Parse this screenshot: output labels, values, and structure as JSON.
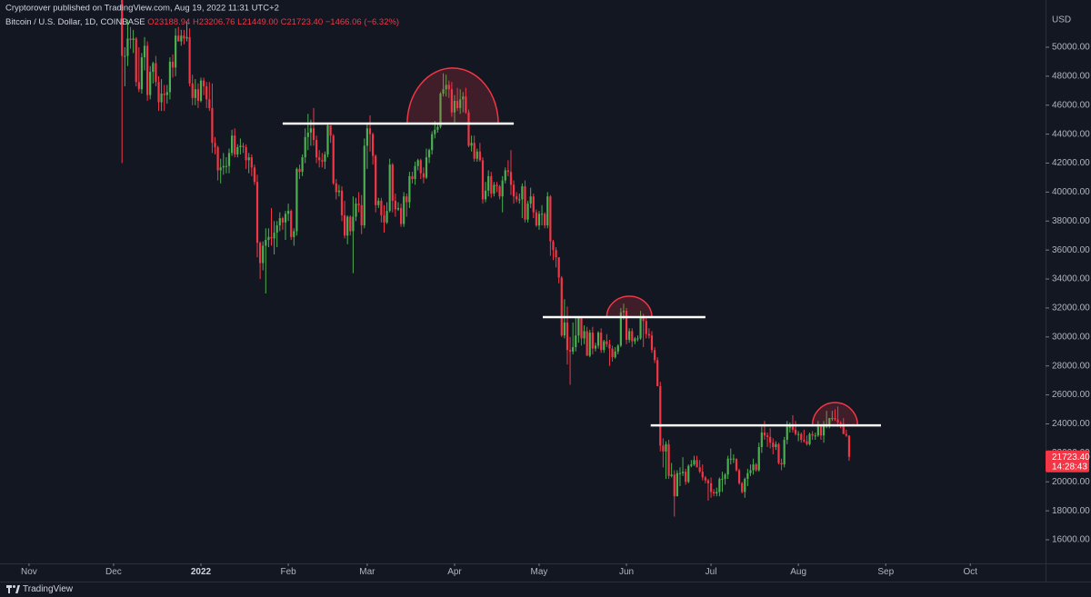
{
  "header": "Cryptorover published on TradingView.com, Aug 19, 2022 11:31 UTC+2",
  "brand": "TradingView",
  "chart_data": {
    "type": "candlestick",
    "symbol": "Bitcoin / U.S. Dollar, 1D, COINBASE",
    "legend": [
      "O23188.94",
      "H23206.76",
      "L21449.00",
      "C21723.40",
      "−1466.06 (−6.32%)"
    ],
    "currency": "USD",
    "up_color": "#4caf50",
    "down_color": "#f23645",
    "level_color": "#ffffff",
    "arc_color": "#f23645",
    "grid": false,
    "xlim": [
      -10.3,
      360.7
    ],
    "xticks": [
      {
        "value": 0,
        "label": "Nov"
      },
      {
        "value": 30,
        "label": "Dec"
      },
      {
        "value": 61,
        "label": "2022"
      },
      {
        "value": 92,
        "label": "Feb"
      },
      {
        "value": 120,
        "label": "Mar"
      },
      {
        "value": 151,
        "label": "Apr"
      },
      {
        "value": 181,
        "label": "May"
      },
      {
        "value": 212,
        "label": "Jun"
      },
      {
        "value": 242,
        "label": "Jul"
      },
      {
        "value": 273,
        "label": "Aug"
      },
      {
        "value": 304,
        "label": "Sep"
      },
      {
        "value": 334,
        "label": "Oct"
      }
    ],
    "ylim": [
      14370,
      53260
    ],
    "yticks": [
      {
        "value": 16000,
        "label": "16000.00"
      },
      {
        "value": 18000,
        "label": "18000.00"
      },
      {
        "value": 20000,
        "label": "20000.00"
      },
      {
        "value": 22000,
        "label": "22000.00"
      },
      {
        "value": 24000,
        "label": "24000.00"
      },
      {
        "value": 26000,
        "label": "26000.00"
      },
      {
        "value": 28000,
        "label": "28000.00"
      },
      {
        "value": 30000,
        "label": "30000.00"
      },
      {
        "value": 32000,
        "label": "32000.00"
      },
      {
        "value": 34000,
        "label": "34000.00"
      },
      {
        "value": 36000,
        "label": "36000.00"
      },
      {
        "value": 38000,
        "label": "38000.00"
      },
      {
        "value": 40000,
        "label": "40000.00"
      },
      {
        "value": 42000,
        "label": "42000.00"
      },
      {
        "value": 44000,
        "label": "44000.00"
      },
      {
        "value": 46000,
        "label": "46000.00"
      },
      {
        "value": 48000,
        "label": "48000.00"
      },
      {
        "value": 50000,
        "label": "50000.00"
      }
    ],
    "last_price": {
      "value": 21723.4,
      "label": "21723.40"
    },
    "countdown": "14:28:43",
    "levels": [
      {
        "value": 44730,
        "from": 90,
        "to": 172
      },
      {
        "value": 31370,
        "from": 182.3,
        "to": 240
      },
      {
        "value": 23900,
        "from": 220.6,
        "to": 302.3
      }
    ],
    "arcs": [
      {
        "from": 134.2,
        "to": 166.5,
        "base": 44730,
        "top": 48560
      },
      {
        "from": 205,
        "to": 221,
        "base": 31370,
        "top": 32810
      },
      {
        "from": 278,
        "to": 294,
        "base": 23900,
        "top": 25470
      }
    ],
    "x": [
      33,
      34,
      35,
      36,
      37,
      38,
      39,
      40,
      41,
      42,
      43,
      44,
      45,
      46,
      47,
      48,
      49,
      50,
      51,
      52,
      53,
      54,
      55,
      56,
      57,
      58,
      59,
      60,
      61,
      62,
      63,
      64,
      65,
      66,
      67,
      68,
      69,
      70,
      71,
      72,
      73,
      74,
      75,
      76,
      77,
      78,
      79,
      80,
      81,
      82,
      83,
      84,
      85,
      86,
      87,
      88,
      89,
      90,
      91,
      92,
      93,
      94,
      95,
      96,
      97,
      98,
      99,
      100,
      101,
      102,
      103,
      104,
      105,
      106,
      107,
      108,
      109,
      110,
      111,
      112,
      113,
      114,
      115,
      116,
      117,
      118,
      119,
      120,
      121,
      122,
      123,
      124,
      125,
      126,
      127,
      128,
      129,
      130,
      131,
      132,
      133,
      134,
      135,
      136,
      137,
      138,
      139,
      140,
      141,
      142,
      143,
      144,
      145,
      146,
      147,
      148,
      149,
      150,
      151,
      152,
      153,
      154,
      155,
      156,
      157,
      158,
      159,
      160,
      161,
      162,
      163,
      164,
      165,
      166,
      167,
      168,
      169,
      170,
      171,
      172,
      173,
      174,
      175,
      176,
      177,
      178,
      179,
      180,
      181,
      182,
      183,
      184,
      185,
      186,
      187,
      188,
      189,
      190,
      191,
      192,
      193,
      194,
      195,
      196,
      197,
      198,
      199,
      200,
      201,
      202,
      203,
      204,
      205,
      206,
      207,
      208,
      209,
      210,
      211,
      212,
      213,
      214,
      215,
      216,
      217,
      218,
      219,
      220,
      221,
      222,
      223,
      224,
      225,
      226,
      227,
      228,
      229,
      230,
      231,
      232,
      233,
      234,
      235,
      236,
      237,
      238,
      239,
      240,
      241,
      242,
      243,
      244,
      245,
      246,
      247,
      248,
      249,
      250,
      251,
      252,
      253,
      254,
      255,
      256,
      257,
      258,
      259,
      260,
      261,
      262,
      263,
      264,
      265,
      266,
      267,
      268,
      269,
      270,
      271,
      272,
      273,
      274,
      275,
      276,
      277,
      278,
      279,
      280,
      281,
      282,
      283,
      284,
      285,
      286,
      287,
      288,
      289,
      290,
      291
    ],
    "open": [
      53600,
      49400,
      49400,
      50600,
      50500,
      50600,
      47600,
      47100,
      49300,
      50100,
      46700,
      48300,
      48900,
      47600,
      46200,
      46800,
      46700,
      46900,
      49000,
      48600,
      50800,
      50400,
      50800,
      50600,
      50700,
      47500,
      46500,
      47100,
      46300,
      47700,
      47300,
      46400,
      45800,
      43400,
      43100,
      41500,
      41700,
      41800,
      41800,
      42700,
      43900,
      42600,
      43100,
      43200,
      43100,
      42200,
      42400,
      41700,
      40700,
      36500,
      35100,
      36300,
      36700,
      36900,
      36800,
      37200,
      37700,
      38200,
      37900,
      38500,
      38700,
      36900,
      37300,
      41600,
      41400,
      42400,
      43800,
      44100,
      44400,
      43600,
      42400,
      42200,
      42100,
      42600,
      44600,
      43900,
      40600,
      40000,
      40100,
      38400,
      37000,
      38300,
      37300,
      38300,
      39200,
      39100,
      37700,
      43200,
      44400,
      44000,
      42500,
      39100,
      39400,
      38400,
      37900,
      38700,
      41900,
      39400,
      38800,
      38900,
      37800,
      39700,
      39300,
      41100,
      40900,
      41800,
      42200,
      41300,
      41000,
      42400,
      42900,
      44000,
      44300,
      44500,
      46800,
      47100,
      47400,
      47100,
      45500,
      46300,
      45800,
      46400,
      46600,
      45500,
      43200,
      43400,
      42300,
      42800,
      42200,
      39500,
      40100,
      41100,
      39900,
      40500,
      40400,
      39700,
      40800,
      41500,
      41400,
      40500,
      39700,
      39500,
      39500,
      40400,
      38100,
      39200,
      39700,
      38600,
      37700,
      38500,
      38500,
      37700,
      39700,
      36600,
      36000,
      35500,
      34100,
      30100,
      31000,
      29100,
      29000,
      29300,
      30100,
      31300,
      29900,
      30400,
      28700,
      30300,
      29200,
      29400,
      30300,
      29100,
      29700,
      29500,
      29200,
      28600,
      29000,
      29400,
      31700,
      31800,
      29800,
      30400,
      29700,
      29900,
      29900,
      31400,
      31100,
      30200,
      30100,
      29100,
      28400,
      26600,
      22500,
      22100,
      22600,
      20400,
      20500,
      19000,
      20600,
      20600,
      20700,
      20000,
      21100,
      21200,
      21500,
      21000,
      20700,
      20300,
      20100,
      19900,
      19300,
      19200,
      19300,
      20200,
      20200,
      20500,
      21600,
      21600,
      21600,
      20800,
      19900,
      19300,
      20200,
      20600,
      20800,
      21200,
      20800,
      22400,
      23400,
      23200,
      23100,
      22700,
      22400,
      22600,
      21300,
      21200,
      22900,
      23800,
      23800,
      23600,
      23300,
      23300,
      22900,
      22800,
      22600,
      23300,
      23200,
      23200,
      23800,
      23200,
      23900,
      23900,
      24400,
      24400,
      24300,
      24100,
      24000,
      23300,
      23188.94
    ],
    "high": [
      53900,
      50000,
      51900,
      51400,
      51200,
      50700,
      50000,
      49600,
      50700,
      50400,
      48700,
      49000,
      49400,
      48000,
      47800,
      47400,
      47400,
      49300,
      49500,
      51300,
      51400,
      51200,
      51200,
      51800,
      51300,
      48100,
      47800,
      47500,
      47900,
      47900,
      47600,
      47600,
      47500,
      43800,
      43200,
      42300,
      42700,
      42400,
      43000,
      44300,
      44400,
      43300,
      43700,
      43400,
      43300,
      42700,
      42600,
      41900,
      41200,
      36600,
      36600,
      37500,
      37500,
      38900,
      38000,
      38000,
      38600,
      38300,
      38700,
      39200,
      38800,
      37500,
      41700,
      41900,
      42600,
      44400,
      45400,
      45000,
      45800,
      43900,
      42900,
      42700,
      42800,
      44700,
      44600,
      44000,
      40900,
      40500,
      40400,
      39400,
      38400,
      38400,
      39700,
      39600,
      40000,
      39800,
      43700,
      44800,
      45300,
      44100,
      42600,
      39600,
      39600,
      39100,
      39300,
      42300,
      42000,
      39900,
      39300,
      39200,
      40000,
      39900,
      41400,
      41400,
      42100,
      42300,
      42300,
      41700,
      43000,
      43000,
      44200,
      44900,
      44800,
      46900,
      48200,
      48100,
      47700,
      47600,
      46700,
      47200,
      47100,
      46900,
      47200,
      45700,
      43900,
      43900,
      43000,
      43400,
      42400,
      40700,
      41500,
      41400,
      40700,
      40700,
      40500,
      41100,
      41700,
      42200,
      42900,
      40800,
      40000,
      39900,
      40600,
      40800,
      39400,
      40300,
      39900,
      38800,
      38700,
      39100,
      38600,
      40000,
      39800,
      36700,
      36200,
      35500,
      34200,
      32600,
      32100,
      30000,
      31000,
      31300,
      31400,
      31400,
      30800,
      30700,
      30500,
      30700,
      29600,
      30400,
      30600,
      29800,
      30200,
      29800,
      29400,
      29300,
      29500,
      32000,
      32300,
      32000,
      30600,
      30600,
      30000,
      30100,
      31800,
      31600,
      31300,
      30600,
      30400,
      29300,
      28600,
      26900,
      23000,
      22800,
      22900,
      21300,
      20800,
      20800,
      21000,
      21700,
      20900,
      21200,
      21500,
      21800,
      21800,
      21500,
      21200,
      20400,
      20200,
      20300,
      19500,
      19600,
      20300,
      20700,
      20600,
      21800,
      22300,
      21900,
      21600,
      20900,
      20000,
      20300,
      20900,
      21200,
      21600,
      21300,
      22700,
      23800,
      24200,
      23400,
      23700,
      23000,
      22800,
      22700,
      21600,
      23100,
      24200,
      24100,
      24600,
      24200,
      23500,
      23400,
      23600,
      23200,
      23400,
      23500,
      23400,
      24200,
      23900,
      24200,
      24900,
      24400,
      24900,
      25000,
      25200,
      24200,
      24400,
      23600,
      23206.76
    ],
    "low": [
      42000,
      47300,
      48700,
      49900,
      49600,
      47300,
      46900,
      46800,
      48400,
      46300,
      46400,
      47500,
      47300,
      45600,
      45600,
      45600,
      46100,
      46400,
      47900,
      48000,
      50400,
      50100,
      50200,
      50400,
      47300,
      46000,
      46000,
      45800,
      46200,
      46700,
      45800,
      45600,
      42700,
      42600,
      40800,
      40600,
      41200,
      41300,
      41300,
      42500,
      42400,
      42400,
      42600,
      42700,
      41600,
      41300,
      41100,
      40500,
      35500,
      34000,
      34600,
      33000,
      36200,
      36300,
      35700,
      36200,
      37300,
      37400,
      36700,
      38000,
      36700,
      36300,
      37000,
      40900,
      41100,
      42000,
      42900,
      43200,
      43200,
      42000,
      41700,
      41700,
      41600,
      42400,
      43400,
      40500,
      39500,
      39700,
      38000,
      36800,
      36400,
      37000,
      34400,
      38000,
      38600,
      37100,
      37500,
      41600,
      42800,
      41900,
      38600,
      38900,
      37900,
      37200,
      37800,
      38600,
      38600,
      38300,
      38700,
      37600,
      37600,
      38300,
      38900,
      40600,
      40500,
      41500,
      40900,
      40600,
      40900,
      42000,
      42600,
      43700,
      44100,
      44400,
      46600,
      46600,
      46500,
      45200,
      44800,
      45600,
      45400,
      45500,
      45400,
      43100,
      42800,
      42100,
      42100,
      42100,
      39200,
      39300,
      39700,
      39600,
      39700,
      40000,
      39500,
      38600,
      40600,
      41100,
      39800,
      39200,
      39300,
      39200,
      38200,
      37900,
      37900,
      38900,
      38200,
      37600,
      37400,
      37700,
      37500,
      37500,
      35600,
      35300,
      34800,
      33700,
      30000,
      29900,
      28100,
      26700,
      28800,
      29000,
      29600,
      29400,
      29500,
      28700,
      28600,
      28800,
      29000,
      29200,
      28900,
      28900,
      29300,
      28000,
      28300,
      28500,
      28800,
      29300,
      31200,
      29500,
      29600,
      29300,
      29500,
      29700,
      29800,
      29300,
      29900,
      29900,
      28900,
      28200,
      26600,
      22100,
      21000,
      20200,
      20200,
      20300,
      17600,
      19000,
      19700,
      20400,
      19800,
      19900,
      21000,
      21100,
      21000,
      20600,
      20100,
      19900,
      18700,
      18900,
      19000,
      19000,
      19000,
      19300,
      19800,
      20200,
      21200,
      21300,
      20700,
      19800,
      19200,
      18900,
      19700,
      20400,
      20500,
      20700,
      20700,
      22000,
      22900,
      22400,
      22300,
      21900,
      22200,
      21200,
      20800,
      21000,
      22600,
      23400,
      23400,
      23200,
      22800,
      22700,
      22700,
      22500,
      22500,
      22900,
      22900,
      23100,
      22900,
      22700,
      23700,
      23700,
      24200,
      24200,
      23800,
      23700,
      23300,
      23100,
      21449
    ],
    "close": [
      49400,
      49400,
      50600,
      50500,
      50600,
      47600,
      47100,
      49300,
      50100,
      46700,
      48300,
      48900,
      47600,
      46200,
      46800,
      46700,
      46900,
      49000,
      48600,
      50800,
      50400,
      50800,
      50600,
      50700,
      47500,
      46500,
      47100,
      46300,
      47700,
      47300,
      46400,
      45800,
      43400,
      43100,
      41500,
      41700,
      41800,
      41800,
      42700,
      43900,
      42600,
      43100,
      43200,
      43100,
      42200,
      42400,
      41700,
      40700,
      36500,
      35100,
      36300,
      36700,
      36900,
      36800,
      37200,
      37700,
      38200,
      37900,
      38500,
      38700,
      36900,
      37300,
      41600,
      41400,
      42400,
      43800,
      44100,
      44400,
      43600,
      42400,
      42200,
      42100,
      42600,
      44600,
      43900,
      40600,
      40000,
      40100,
      38400,
      37000,
      38300,
      37300,
      38300,
      39200,
      39100,
      37700,
      43200,
      44400,
      44000,
      42500,
      39100,
      39400,
      38400,
      37900,
      38700,
      41900,
      39400,
      38800,
      38900,
      37800,
      39700,
      39300,
      41100,
      40900,
      41800,
      42200,
      41300,
      41000,
      42400,
      42900,
      44000,
      44300,
      44500,
      46800,
      47100,
      47400,
      47100,
      45500,
      46300,
      45800,
      46400,
      46600,
      45500,
      43200,
      43400,
      42300,
      42800,
      42200,
      39500,
      40100,
      41100,
      39900,
      40500,
      40400,
      39700,
      40800,
      41500,
      41400,
      40500,
      39700,
      39500,
      39500,
      40400,
      38100,
      39200,
      39700,
      38600,
      37700,
      38500,
      38500,
      37700,
      39700,
      36600,
      36000,
      35500,
      34100,
      30100,
      31000,
      29100,
      29000,
      29300,
      30100,
      31300,
      29900,
      30400,
      28700,
      30300,
      29200,
      29400,
      30300,
      29100,
      29700,
      29500,
      29200,
      28600,
      29000,
      29400,
      31700,
      31800,
      29800,
      30400,
      29700,
      29900,
      29900,
      31400,
      31100,
      30200,
      30100,
      29100,
      28400,
      26600,
      22500,
      22100,
      22600,
      20400,
      20500,
      19000,
      20600,
      20600,
      20700,
      20000,
      21100,
      21200,
      21500,
      21000,
      20700,
      20300,
      20100,
      19900,
      19300,
      19200,
      19300,
      20200,
      20200,
      20500,
      21600,
      21600,
      21600,
      20800,
      19900,
      19300,
      20200,
      20600,
      20800,
      21200,
      20800,
      22400,
      23400,
      23200,
      23100,
      22700,
      22400,
      22600,
      21300,
      21200,
      22900,
      23800,
      23800,
      23600,
      23300,
      23300,
      22900,
      22800,
      22600,
      23300,
      23200,
      23200,
      23800,
      23200,
      23900,
      23900,
      24400,
      24400,
      24300,
      24100,
      24000,
      23300,
      23189,
      21723.4
    ]
  }
}
